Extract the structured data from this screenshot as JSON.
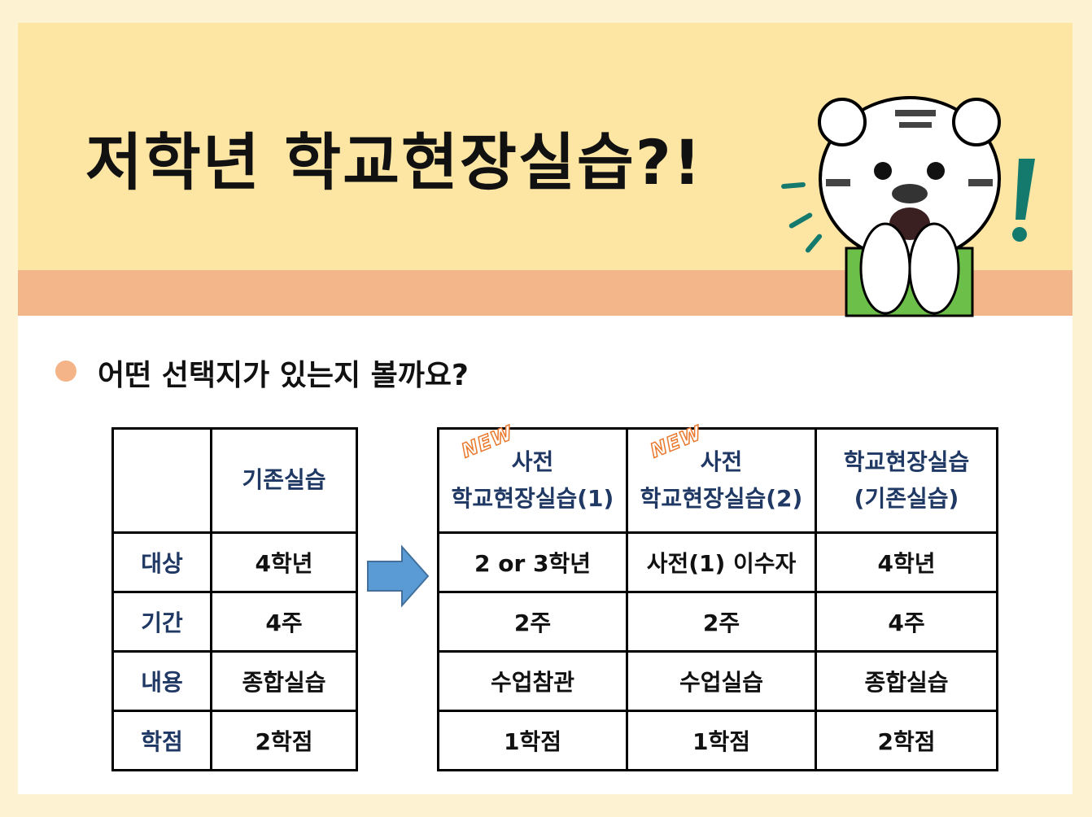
{
  "title": "저학년 학교현장실습?!",
  "subtitle": "어떤 선택지가 있는지 볼까요?",
  "badge": "NEW",
  "left_table": {
    "header": "기존실습",
    "rows": [
      {
        "label": "대상",
        "value": "4학년"
      },
      {
        "label": "기간",
        "value": "4주"
      },
      {
        "label": "내용",
        "value": "종합실습"
      },
      {
        "label": "학점",
        "value": "2학점"
      }
    ]
  },
  "right_table": {
    "headers": [
      {
        "line1": "사전",
        "line2": "학교현장실습(1)",
        "new": true
      },
      {
        "line1": "사전",
        "line2": "학교현장실습(2)",
        "new": true
      },
      {
        "line1": "학교현장실습",
        "line2": "(기존실습)",
        "new": false
      }
    ],
    "rows": [
      [
        "2 or 3학년",
        "사전(1) 이수자",
        "4학년"
      ],
      [
        "2주",
        "2주",
        "4주"
      ],
      [
        "수업참관",
        "수업실습",
        "종합실습"
      ],
      [
        "1학점",
        "1학점",
        "2학점"
      ]
    ]
  },
  "colors": {
    "header_bg": "#fde6a3",
    "band": "#f3b58a",
    "label_text": "#1f3864",
    "arrow": "#5b9bd5",
    "accent_green": "#157a6e"
  }
}
